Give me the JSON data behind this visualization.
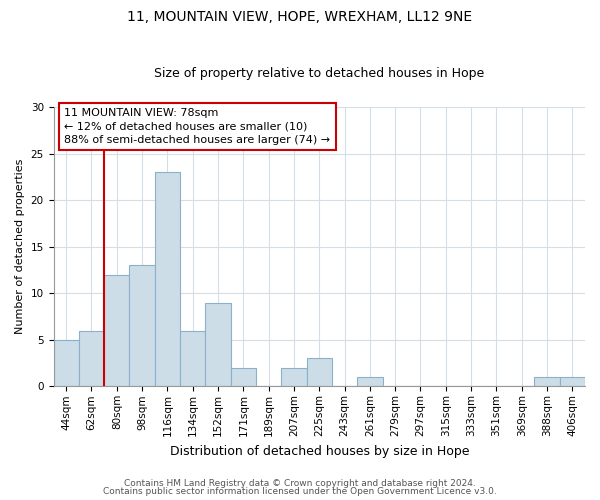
{
  "title_line1": "11, MOUNTAIN VIEW, HOPE, WREXHAM, LL12 9NE",
  "title_line2": "Size of property relative to detached houses in Hope",
  "xlabel": "Distribution of detached houses by size in Hope",
  "ylabel": "Number of detached properties",
  "bar_labels": [
    "44sqm",
    "62sqm",
    "80sqm",
    "98sqm",
    "116sqm",
    "134sqm",
    "152sqm",
    "171sqm",
    "189sqm",
    "207sqm",
    "225sqm",
    "243sqm",
    "261sqm",
    "279sqm",
    "297sqm",
    "315sqm",
    "333sqm",
    "351sqm",
    "369sqm",
    "388sqm",
    "406sqm"
  ],
  "bar_values": [
    5,
    6,
    12,
    13,
    23,
    6,
    9,
    2,
    0,
    2,
    3,
    0,
    1,
    0,
    0,
    0,
    0,
    0,
    0,
    1,
    1
  ],
  "bar_color": "#ccdde8",
  "bar_edge_color": "#8ab0cc",
  "annotation_title": "11 MOUNTAIN VIEW: 78sqm",
  "annotation_line1": "← 12% of detached houses are smaller (10)",
  "annotation_line2": "88% of semi-detached houses are larger (74) →",
  "vline_x_index": 2,
  "vline_color": "#cc0000",
  "ylim": [
    0,
    30
  ],
  "yticks": [
    0,
    5,
    10,
    15,
    20,
    25,
    30
  ],
  "title_fontsize": 10,
  "subtitle_fontsize": 9,
  "xlabel_fontsize": 9,
  "ylabel_fontsize": 8,
  "tick_fontsize": 7.5,
  "footnote_line1": "Contains HM Land Registry data © Crown copyright and database right 2024.",
  "footnote_line2": "Contains public sector information licensed under the Open Government Licence v3.0.",
  "footnote_fontsize": 6.5
}
